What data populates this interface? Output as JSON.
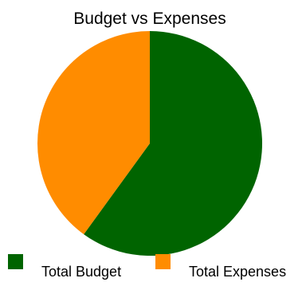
{
  "chart_data": {
    "type": "pie",
    "title": "Budget vs Expenses",
    "categories": [
      "Total Budget",
      "Total Expenses"
    ],
    "values": [
      60,
      40
    ],
    "colors": [
      "#006400",
      "#ff8c00"
    ],
    "start_angle_deg": 0,
    "direction": "clockwise",
    "legend_position": "bottom"
  }
}
